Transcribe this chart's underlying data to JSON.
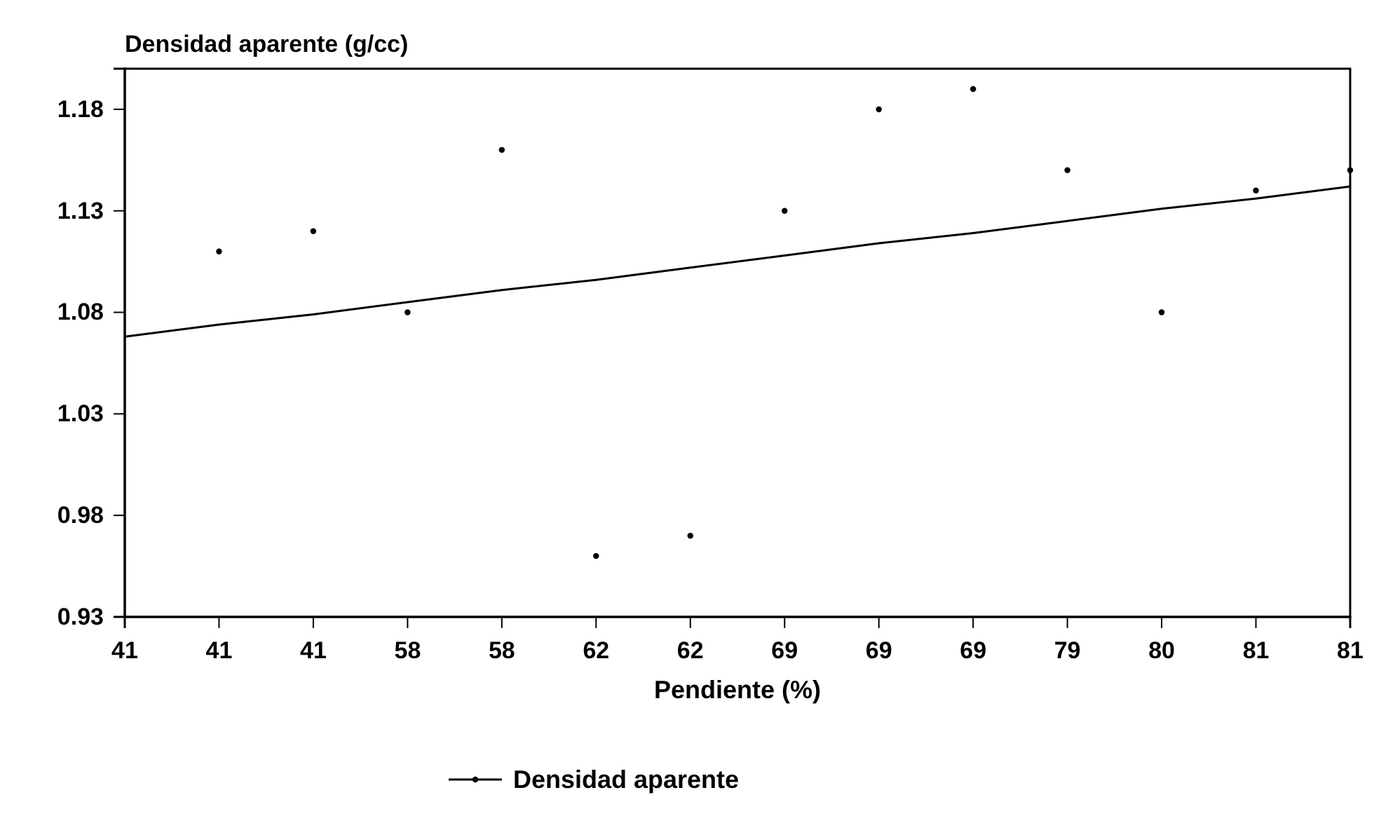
{
  "chart_data": {
    "type": "scatter",
    "ylabel": "Densidad aparente (g/cc)",
    "xlabel": "Pendiente (%)",
    "categories": [
      "41",
      "41",
      "41",
      "58",
      "58",
      "62",
      "62",
      "69",
      "69",
      "69",
      "79",
      "80",
      "81",
      "81"
    ],
    "series": [
      {
        "name": "Densidad aparente",
        "color": "#000000",
        "marker": "circle",
        "values": [
          null,
          1.11,
          1.12,
          1.08,
          1.16,
          0.96,
          0.97,
          1.13,
          1.18,
          1.19,
          1.15,
          1.08,
          1.14,
          1.15
        ]
      },
      {
        "type": "line",
        "color": "#000000",
        "marker": "none",
        "values": [
          1.068,
          1.074,
          1.079,
          1.085,
          1.091,
          1.096,
          1.102,
          1.108,
          1.114,
          1.119,
          1.125,
          1.131,
          1.136,
          1.142
        ]
      }
    ],
    "ylim": [
      0.93,
      1.2
    ],
    "yticks": [
      0.93,
      0.98,
      1.03,
      1.08,
      1.13,
      1.18
    ],
    "grid": false,
    "legend": "bottom"
  }
}
